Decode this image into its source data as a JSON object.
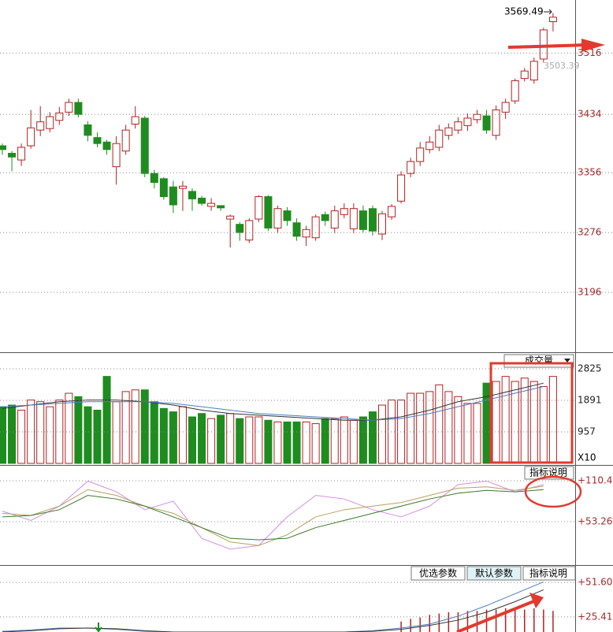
{
  "chart_data": [
    {
      "type": "candlestick",
      "open": [
        3392,
        3382,
        3373,
        3392,
        3413,
        3415,
        3426,
        3437,
        3450,
        3420,
        3403,
        3397,
        3364,
        3385,
        3421,
        3429,
        3355,
        3348,
        3337,
        3335,
        3331,
        3322,
        3311,
        3312,
        3294,
        3287,
        3266,
        3294,
        3324,
        3282,
        3305,
        3289,
        3270,
        3269,
        3300,
        3282,
        3300,
        3281,
        3305,
        3308,
        3274,
        3297,
        3318,
        3355,
        3371,
        3387,
        3390,
        3406,
        3413,
        3419,
        3427,
        3432,
        3406,
        3437,
        3452,
        3482,
        3480,
        3508,
        3558
      ],
      "high": [
        3395,
        3385,
        3395,
        3440,
        3445,
        3437,
        3444,
        3455,
        3455,
        3425,
        3410,
        3400,
        3405,
        3420,
        3445,
        3432,
        3360,
        3350,
        3345,
        3345,
        3335,
        3325,
        3322,
        3312,
        3300,
        3290,
        3295,
        3326,
        3326,
        3312,
        3310,
        3295,
        3285,
        3300,
        3304,
        3312,
        3315,
        3315,
        3312,
        3312,
        3305,
        3314,
        3358,
        3376,
        3397,
        3405,
        3420,
        3422,
        3430,
        3435,
        3440,
        3440,
        3446,
        3455,
        3482,
        3496,
        3510,
        3550,
        3569.49
      ],
      "low": [
        3380,
        3358,
        3365,
        3388,
        3405,
        3410,
        3420,
        3432,
        3430,
        3398,
        3390,
        3380,
        3340,
        3380,
        3415,
        3350,
        3335,
        3320,
        3302,
        3305,
        3305,
        3312,
        3305,
        3305,
        3256,
        3265,
        3262,
        3290,
        3278,
        3275,
        3285,
        3265,
        3258,
        3265,
        3285,
        3275,
        3295,
        3275,
        3276,
        3272,
        3266,
        3293,
        3315,
        3350,
        3365,
        3382,
        3385,
        3400,
        3408,
        3412,
        3422,
        3408,
        3400,
        3428,
        3448,
        3478,
        3475,
        3503.39,
        3545
      ],
      "close": [
        3387,
        3377,
        3390,
        3416,
        3424,
        3431,
        3436,
        3450,
        3434,
        3406,
        3395,
        3387,
        3395,
        3413,
        3431,
        3355,
        3343,
        3324,
        3313,
        3338,
        3321,
        3315,
        3315,
        3309,
        3298,
        3276,
        3292,
        3324,
        3282,
        3308,
        3292,
        3271,
        3280,
        3297,
        3292,
        3305,
        3308,
        3308,
        3280,
        3278,
        3301,
        3311,
        3353,
        3371,
        3389,
        3397,
        3413,
        3416,
        3424,
        3429,
        3434,
        3413,
        3440,
        3450,
        3479,
        3492,
        3505,
        3547,
        3564
      ],
      "up_color": "#b22222",
      "down_color": "#1e8c1e",
      "ylim": [
        3118,
        3587
      ],
      "yticks": [
        3196,
        3276,
        3356,
        3434,
        3516
      ],
      "grid": true,
      "annotations": [
        "3569.49",
        "3503.39"
      ]
    },
    {
      "type": "bar",
      "button": "成交量",
      "unit_label": "X10",
      "values": [
        1700,
        1750,
        1600,
        1900,
        1850,
        1700,
        1900,
        2100,
        2000,
        1700,
        1600,
        2600,
        1850,
        2150,
        2200,
        2200,
        1850,
        1650,
        1550,
        1700,
        1400,
        1500,
        1350,
        1450,
        1500,
        1350,
        1400,
        1400,
        1300,
        1250,
        1250,
        1250,
        1250,
        1200,
        1350,
        1350,
        1400,
        1300,
        1400,
        1550,
        1750,
        1900,
        1900,
        2100,
        2100,
        2150,
        2350,
        2150,
        2000,
        1800,
        1800,
        2400,
        2450,
        2600,
        2450,
        2550,
        2450,
        2300,
        2600
      ],
      "series": [
        {
          "color": "#333333",
          "x": [
            0,
            3,
            6,
            9,
            12,
            15,
            18,
            21,
            24,
            27,
            30,
            33,
            36,
            39,
            42,
            45,
            48,
            51,
            54,
            57
          ],
          "values": [
            1650,
            1750,
            1850,
            1900,
            1900,
            1850,
            1750,
            1600,
            1500,
            1450,
            1400,
            1350,
            1300,
            1300,
            1400,
            1600,
            1850,
            2000,
            2200,
            2400
          ]
        },
        {
          "color": "#4a7fc0",
          "x": [
            0,
            3,
            6,
            9,
            12,
            15,
            18,
            21,
            24,
            27,
            30,
            33,
            36,
            39,
            42,
            45,
            48,
            51,
            54,
            57
          ],
          "values": [
            1700,
            1750,
            1800,
            1850,
            1850,
            1850,
            1800,
            1700,
            1600,
            1500,
            1450,
            1400,
            1350,
            1300,
            1350,
            1500,
            1700,
            1900,
            2100,
            2300
          ]
        }
      ],
      "ylim": [
        23,
        3245
      ],
      "yticks": [
        957,
        1891,
        2825
      ]
    },
    {
      "type": "line",
      "button": "指标说明",
      "series": [
        {
          "color": "#d58ee0",
          "x": [
            0,
            3,
            6,
            9,
            12,
            15,
            18,
            21,
            24,
            27,
            30,
            33,
            36,
            39,
            42,
            45,
            48,
            51,
            54,
            57
          ],
          "values": [
            68,
            55,
            75,
            110,
            95,
            70,
            82,
            30,
            15,
            20,
            60,
            90,
            85,
            70,
            60,
            75,
            105,
            110,
            95,
            105
          ]
        },
        {
          "color": "#b8a060",
          "x": [
            0,
            3,
            6,
            9,
            12,
            15,
            18,
            21,
            24,
            27,
            30,
            33,
            36,
            39,
            42,
            45,
            48,
            51,
            54,
            57
          ],
          "values": [
            65,
            62,
            75,
            98,
            90,
            75,
            65,
            45,
            25,
            20,
            35,
            60,
            70,
            75,
            80,
            90,
            100,
            102,
            97,
            103
          ]
        },
        {
          "color": "#3c7a2a",
          "x": [
            0,
            3,
            6,
            9,
            12,
            15,
            18,
            21,
            24,
            27,
            30,
            33,
            36,
            39,
            42,
            45,
            48,
            51,
            54,
            57
          ],
          "values": [
            60,
            62,
            70,
            90,
            85,
            75,
            60,
            45,
            30,
            28,
            30,
            45,
            55,
            65,
            75,
            85,
            93,
            97,
            95,
            98
          ]
        }
      ],
      "ylim": [
        -5,
        127
      ],
      "yticks": [
        {
          "value": 53.26,
          "label": "+53.26"
        },
        {
          "value": 110.4,
          "label": "+110.4"
        }
      ]
    },
    {
      "type": "line",
      "buttons": [
        "优选参数",
        "默认参数",
        "指标说明"
      ],
      "bars": {
        "color": "#b22222",
        "x": [
          42,
          43,
          44,
          45,
          46,
          47,
          48,
          49,
          50,
          51,
          52,
          53,
          54,
          55,
          56,
          57,
          58
        ],
        "values": [
          22,
          24,
          25,
          27,
          28,
          29,
          29,
          30,
          30,
          31,
          31,
          32,
          31,
          31,
          32,
          31,
          30
        ]
      },
      "series": [
        {
          "color": "#4a7fc0",
          "x": [
            0,
            3,
            6,
            9,
            12,
            15,
            18,
            21,
            24,
            27,
            30,
            33,
            36,
            39,
            42,
            45,
            48,
            51,
            54,
            57
          ],
          "values": [
            14.5,
            15.5,
            17,
            17,
            16,
            14.5,
            14,
            14,
            14,
            14,
            14,
            14,
            14,
            15,
            17,
            20,
            26,
            34,
            43,
            52
          ]
        },
        {
          "color": "#333333",
          "x": [
            0,
            3,
            6,
            9,
            12,
            15,
            18,
            21,
            24,
            27,
            30,
            33,
            36,
            39,
            42,
            45,
            48,
            51,
            54,
            57
          ],
          "values": [
            14,
            15,
            16.5,
            17,
            16.5,
            15,
            14,
            14,
            14,
            14,
            14,
            14,
            14,
            14.5,
            16,
            19,
            23,
            29,
            37,
            46
          ]
        }
      ],
      "ylim": [
        14,
        63
      ],
      "yticks": [
        {
          "value": 25.41,
          "label": "+25.41"
        },
        {
          "value": 51.6,
          "label": "+51.60"
        }
      ]
    }
  ]
}
